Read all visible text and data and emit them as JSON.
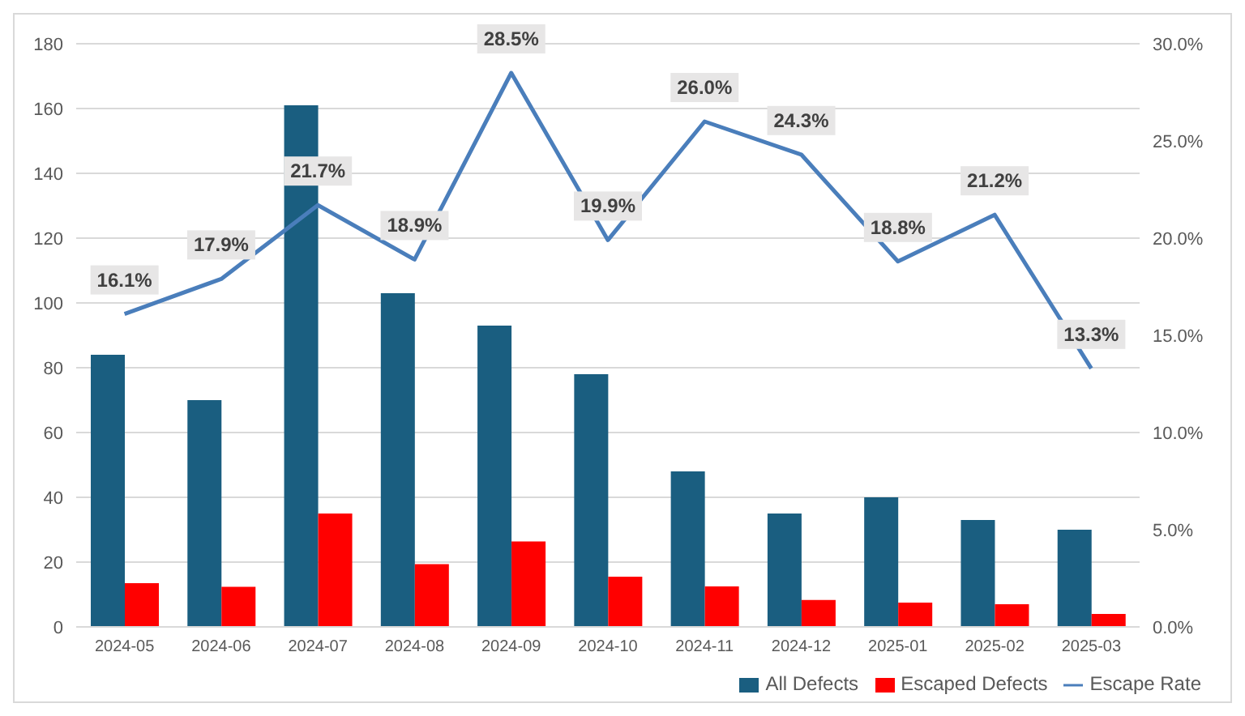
{
  "chart_data": {
    "type": "bar",
    "categories": [
      "2024-05",
      "2024-06",
      "2024-07",
      "2024-08",
      "2024-09",
      "2024-10",
      "2024-11",
      "2024-12",
      "2025-01",
      "2025-02",
      "2025-03"
    ],
    "series": [
      {
        "name": "All Defects",
        "color": "#1a5e80",
        "values": [
          84,
          70,
          161,
          103,
          93,
          78,
          48,
          35,
          40,
          33,
          30
        ]
      },
      {
        "name": "Escaped Defects",
        "color": "#ff0000",
        "values": [
          13.5,
          12.4,
          35,
          19.4,
          26.4,
          15.5,
          12.5,
          8.3,
          7.5,
          7,
          4
        ]
      },
      {
        "name": "Escape Rate",
        "type": "line",
        "axis": "y2",
        "color": "#4a7ebb",
        "values": [
          16.1,
          17.9,
          21.7,
          18.9,
          28.5,
          19.9,
          26.0,
          24.3,
          18.8,
          21.2,
          13.3
        ],
        "value_labels": [
          "16.1%",
          "17.9%",
          "21.7%",
          "18.9%",
          "28.5%",
          "19.9%",
          "26.0%",
          "24.3%",
          "18.8%",
          "21.2%",
          "13.3%"
        ],
        "marker": "none"
      }
    ],
    "ylim": [
      0,
      180
    ],
    "yticks": [
      0,
      20,
      40,
      60,
      80,
      100,
      120,
      140,
      160,
      180
    ],
    "y2lim": [
      0,
      30
    ],
    "y2ticks": [
      {
        "value": 0,
        "label": "0.0%"
      },
      {
        "value": 5,
        "label": "5.0%"
      },
      {
        "value": 10,
        "label": "10.0%"
      },
      {
        "value": 15,
        "label": "15.0%"
      },
      {
        "value": 20,
        "label": "20.0%"
      },
      {
        "value": 25,
        "label": "25.0%"
      },
      {
        "value": 30,
        "label": "30.0%"
      }
    ],
    "grid": "y",
    "legend": "bottom right"
  }
}
